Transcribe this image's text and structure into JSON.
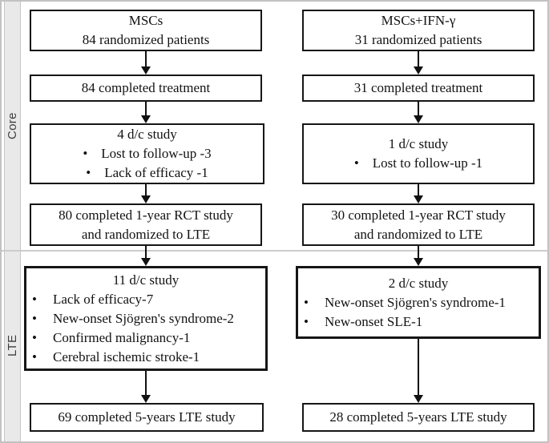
{
  "sections": {
    "core_label": "Core",
    "lte_label": "LTE"
  },
  "arms": [
    {
      "enrollment_line1": "MSCs",
      "enrollment_line2": "84 randomized patients",
      "completed_treatment": "84 completed treatment",
      "core_dc_title": "4 d/c study",
      "core_dc_items": [
        "Lost to follow-up -3",
        "Lack of efficacy -1"
      ],
      "rct_line1": "80 completed 1-year RCT study",
      "rct_line2": "and randomized to LTE",
      "lte_dc_title": "11 d/c study",
      "lte_dc_items": [
        "Lack of efficacy-7",
        "New-onset Sjögren's syndrome-2",
        "Confirmed malignancy-1",
        "Cerebral ischemic stroke-1"
      ],
      "lte_completed": "69 completed 5-years LTE study"
    },
    {
      "enrollment_line1": "MSCs+IFN-γ",
      "enrollment_line2": "31 randomized patients",
      "completed_treatment": "31 completed treatment",
      "core_dc_title": "1 d/c study",
      "core_dc_items": [
        "Lost to follow-up -1"
      ],
      "rct_line1": "30 completed 1-year RCT study",
      "rct_line2": "and randomized to LTE",
      "lte_dc_title": "2 d/c study",
      "lte_dc_items": [
        "New-onset Sjögren's syndrome-1",
        "New-onset SLE-1"
      ],
      "lte_completed": "28 completed 5-years LTE study"
    }
  ],
  "colors": {
    "box_border": "#161616",
    "text": "#121212",
    "strip_background": "#e9e9e9",
    "frame_border": "#c2c2c2",
    "divider": "#cccccc"
  }
}
